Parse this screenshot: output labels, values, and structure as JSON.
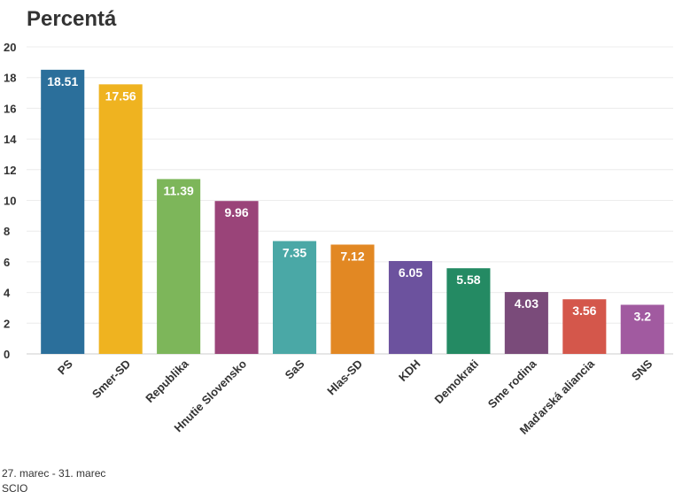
{
  "chart_data": {
    "type": "bar",
    "title": "Percentá",
    "categories": [
      "PS",
      "Smer-SD",
      "Republika",
      "Hnutie Slovensko",
      "SaS",
      "Hlas-SD",
      "KDH",
      "Demokrati",
      "Sme rodina",
      "Maďarská aliancia",
      "SNS"
    ],
    "values": [
      18.51,
      17.56,
      11.39,
      9.96,
      7.35,
      7.12,
      6.05,
      5.58,
      4.03,
      3.56,
      3.2
    ],
    "value_labels": [
      "18.51",
      "17.56",
      "11.39",
      "9.96",
      "7.35",
      "7.12",
      "6.05",
      "5.58",
      "4.03",
      "3.56",
      "3.2"
    ],
    "colors": [
      "#2b6f9b",
      "#efb320",
      "#7db65a",
      "#9a4479",
      "#4aa8a6",
      "#e28823",
      "#6c529e",
      "#248a63",
      "#7a4b7a",
      "#d4574b",
      "#a15aa0"
    ],
    "ylim": [
      0,
      20
    ],
    "yticks": [
      "0",
      "2",
      "4",
      "6",
      "8",
      "10",
      "12",
      "14",
      "16",
      "18",
      "20"
    ],
    "xlabel": "",
    "ylabel": "",
    "grid": true,
    "legend": "none"
  },
  "footer": {
    "date_range": "27. marec - 31. marec",
    "source": "SCIO"
  }
}
